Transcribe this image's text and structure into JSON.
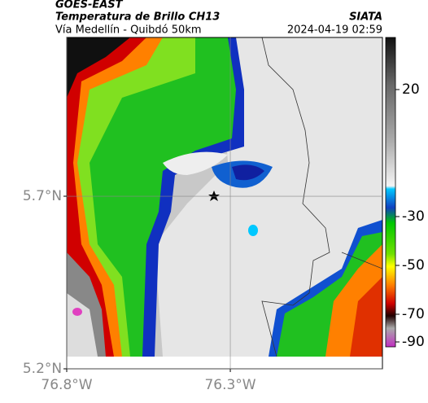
{
  "header": {
    "source": "GOES-EAST",
    "title": "Temperatura de Brillo CH13",
    "subtitle": "Vía Medellín - Quibdó 50km",
    "agency": "SIATA",
    "timestamp": "2024-04-19 02:59"
  },
  "map": {
    "xlim": [
      -76.8,
      -75.835
    ],
    "ylim": [
      5.2,
      6.16
    ],
    "xticks": [
      {
        "value": -76.8,
        "label": "76.8°W"
      },
      {
        "value": -76.3,
        "label": "76.3°W"
      }
    ],
    "yticks": [
      {
        "value": 5.7,
        "label": "5.7°N"
      },
      {
        "value": 5.2,
        "label": "5.2°N"
      }
    ]
  },
  "colorbar": {
    "ticks": [
      20,
      -30,
      -50,
      -70,
      -90
    ]
  }
}
